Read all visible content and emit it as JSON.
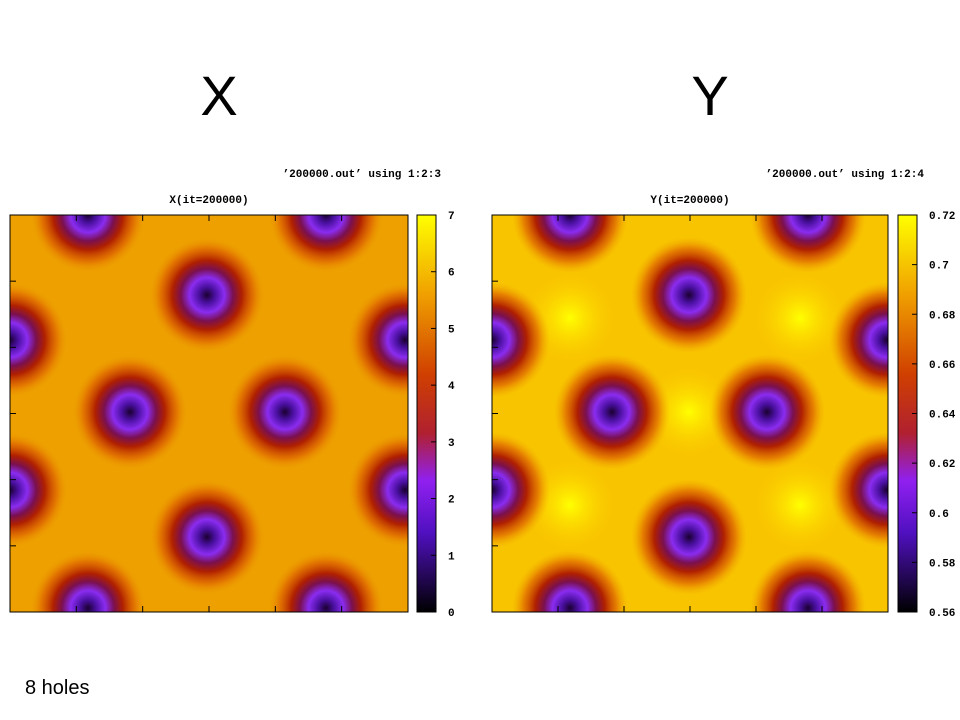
{
  "panels": [
    {
      "heading": "X",
      "legend": "’200000.out’ using 1:2:3",
      "plot_title": "X(it=200000)",
      "colorbar": {
        "range": [
          0,
          7
        ],
        "ticks": [
          0,
          1,
          2,
          3,
          4,
          5,
          6,
          7
        ]
      }
    },
    {
      "heading": "Y",
      "legend": "’200000.out’ using 1:2:4",
      "plot_title": "Y(it=200000)",
      "colorbar": {
        "range": [
          0.56,
          0.72
        ],
        "ticks": [
          0.56,
          0.58,
          0.6,
          0.62,
          0.64,
          0.66,
          0.68,
          0.7,
          0.72
        ]
      }
    }
  ],
  "caption": "8 holes"
}
